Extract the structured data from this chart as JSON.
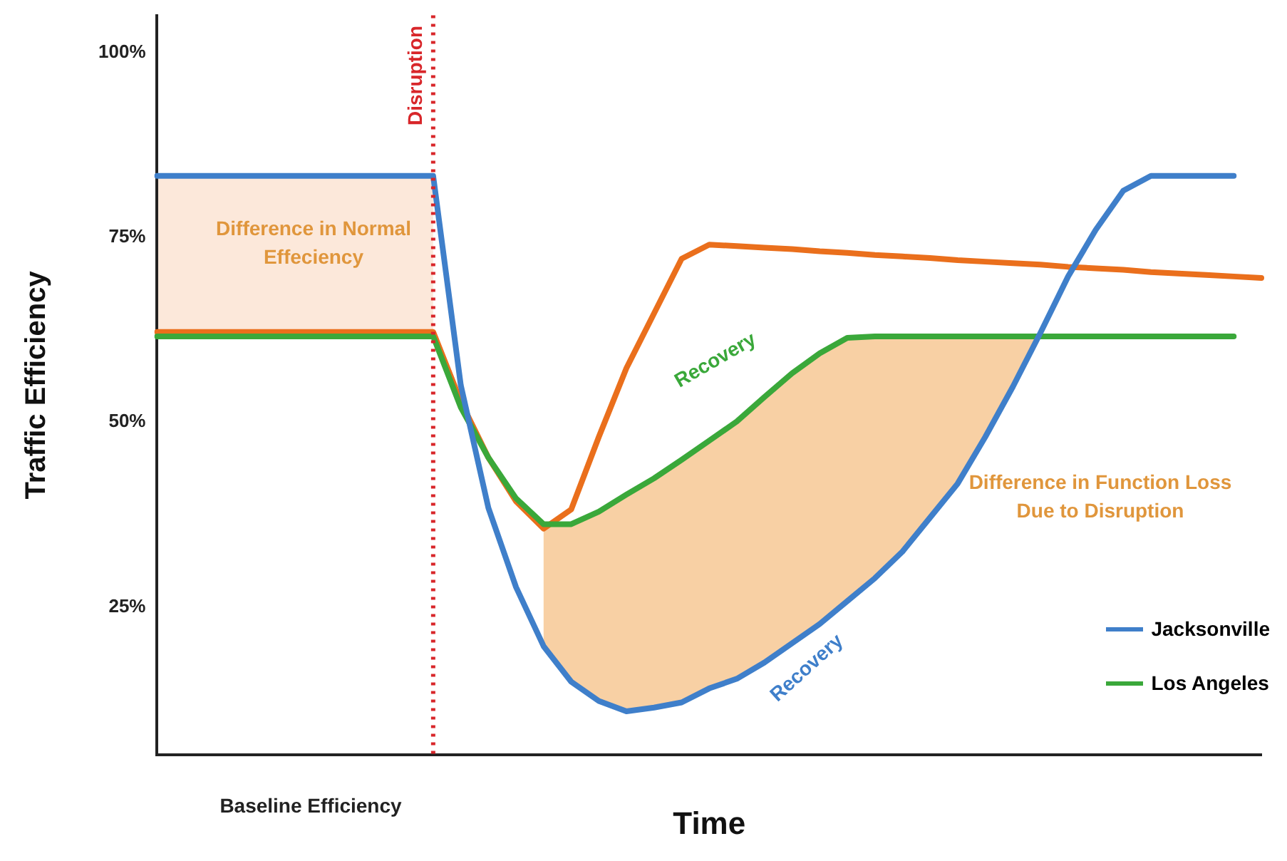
{
  "chart_data": {
    "type": "line",
    "xlabel": "Time",
    "ylabel": "Traffic Efficiency",
    "categories": [
      null,
      null,
      null,
      null,
      null,
      null,
      null,
      null,
      null,
      null,
      null,
      null,
      null,
      null,
      null,
      null,
      null,
      null,
      null,
      null,
      null,
      null,
      null,
      null,
      null,
      null,
      null,
      null,
      null,
      null,
      null,
      null,
      null,
      null,
      null,
      null,
      null,
      null,
      null,
      null,
      null
    ],
    "ylim": [
      5,
      105
    ],
    "tick_labels": "y",
    "yticks": [
      {
        "value": 25,
        "label": "25%"
      },
      {
        "value": 50,
        "label": "50%"
      },
      {
        "value": 75,
        "label": "75%"
      },
      {
        "value": 100,
        "label": "100%"
      }
    ],
    "grid": false,
    "legend": "bottom right",
    "marker": "none",
    "line_style": "solid",
    "series": [
      {
        "name": "Jacksonville",
        "color": "#3f7fca",
        "values": [
          83.3,
          83.3,
          83.3,
          83.3,
          83.3,
          83.3,
          83.3,
          83.3,
          83.3,
          83.3,
          83.3,
          55,
          38.4,
          27.7,
          19.7,
          14.9,
          12.3,
          10.9,
          11.4,
          12.1,
          14,
          15.3,
          17.5,
          20.1,
          22.7,
          25.8,
          28.9,
          32.5,
          37.1,
          41.7,
          48,
          54.8,
          62.1,
          69.7,
          76,
          81.3,
          83.3,
          83.3,
          83.3,
          83.3,
          null
        ]
      },
      {
        "name": "Los Angeles",
        "color": "#3aa83a",
        "values": [
          61.6,
          61.6,
          61.6,
          61.6,
          61.6,
          61.6,
          61.6,
          61.6,
          61.6,
          61.6,
          61.6,
          52,
          45.2,
          39.7,
          36.2,
          36.2,
          37.9,
          40.2,
          42.4,
          44.9,
          47.5,
          50.1,
          53.4,
          56.6,
          59.3,
          61.4,
          61.6,
          61.6,
          61.6,
          61.6,
          61.6,
          61.6,
          61.6,
          61.6,
          61.6,
          61.6,
          61.6,
          61.6,
          61.6,
          61.6,
          null
        ]
      },
      {
        "color": "#ea6f1c",
        "values": [
          62.2,
          62.2,
          62.2,
          62.2,
          62.2,
          62.2,
          62.2,
          62.2,
          62.2,
          62.2,
          62.2,
          52.8,
          45.2,
          39.3,
          35.6,
          38.2,
          48,
          57.3,
          64.7,
          72.1,
          74,
          73.8,
          73.6,
          73.4,
          73.1,
          72.9,
          72.6,
          72.4,
          72.2,
          71.9,
          71.7,
          71.5,
          71.3,
          71,
          70.8,
          70.6,
          70.3,
          70.1,
          69.9,
          69.7,
          69.5
        ]
      }
    ],
    "annotations": [
      "Difference in Normal Effeciency",
      "Recovery",
      "Recovery",
      "Difference in Function Loss Due to Disruption",
      "Baseline Efficiency",
      "Disruption"
    ]
  }
}
